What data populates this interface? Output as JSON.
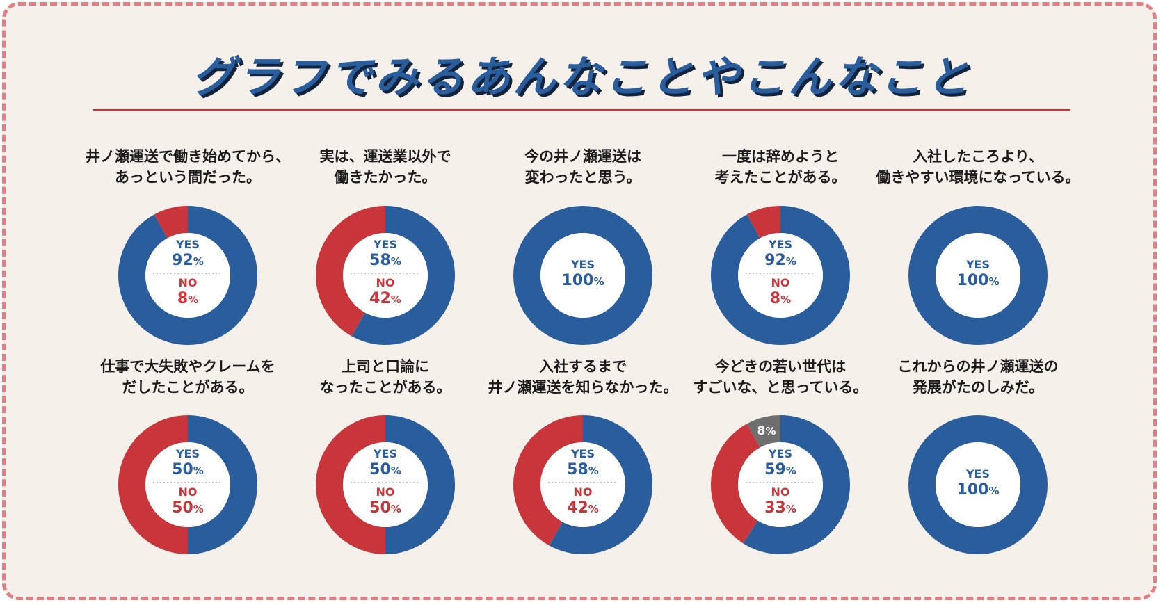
{
  "title": "グラフでみるあんなことやこんなこと",
  "colors": {
    "yes": "#2a5d9c",
    "no": "#c8353a",
    "other": "#6e6e6e",
    "background": "#f5f0ea",
    "border": "#e07e84"
  },
  "labels": {
    "yes": "YES",
    "no": "NO",
    "percent": "%"
  },
  "chart_data": [
    {
      "type": "pie",
      "question": [
        "井ノ瀬運送で働き始めてから、",
        "あっという間だった。"
      ],
      "yes": 92,
      "no": 8
    },
    {
      "type": "pie",
      "question": [
        "実は、運送業以外で",
        "働きたかった。"
      ],
      "yes": 58,
      "no": 42
    },
    {
      "type": "pie",
      "question": [
        "今の井ノ瀬運送は",
        "変わったと思う。"
      ],
      "yes": 100,
      "no": 0
    },
    {
      "type": "pie",
      "question": [
        "一度は辞めようと",
        "考えたことがある。"
      ],
      "yes": 92,
      "no": 8
    },
    {
      "type": "pie",
      "question": [
        "入社したころより、",
        "働きやすい環境になっている。"
      ],
      "yes": 100,
      "no": 0
    },
    {
      "type": "pie",
      "question": [
        "仕事で大失敗やクレームを",
        "だしたことがある。"
      ],
      "yes": 50,
      "no": 50
    },
    {
      "type": "pie",
      "question": [
        "上司と口論に",
        "なったことがある。"
      ],
      "yes": 50,
      "no": 50
    },
    {
      "type": "pie",
      "question": [
        "入社するまで",
        "井ノ瀬運送を知らなかった。"
      ],
      "yes": 58,
      "no": 42
    },
    {
      "type": "pie",
      "question": [
        "今どきの若い世代は",
        "すごいな、と思っている。"
      ],
      "yes": 59,
      "no": 33,
      "other": 8
    },
    {
      "type": "pie",
      "question": [
        "これからの井ノ瀬運送の",
        "発展がたのしみだ。"
      ],
      "yes": 100,
      "no": 0
    }
  ]
}
